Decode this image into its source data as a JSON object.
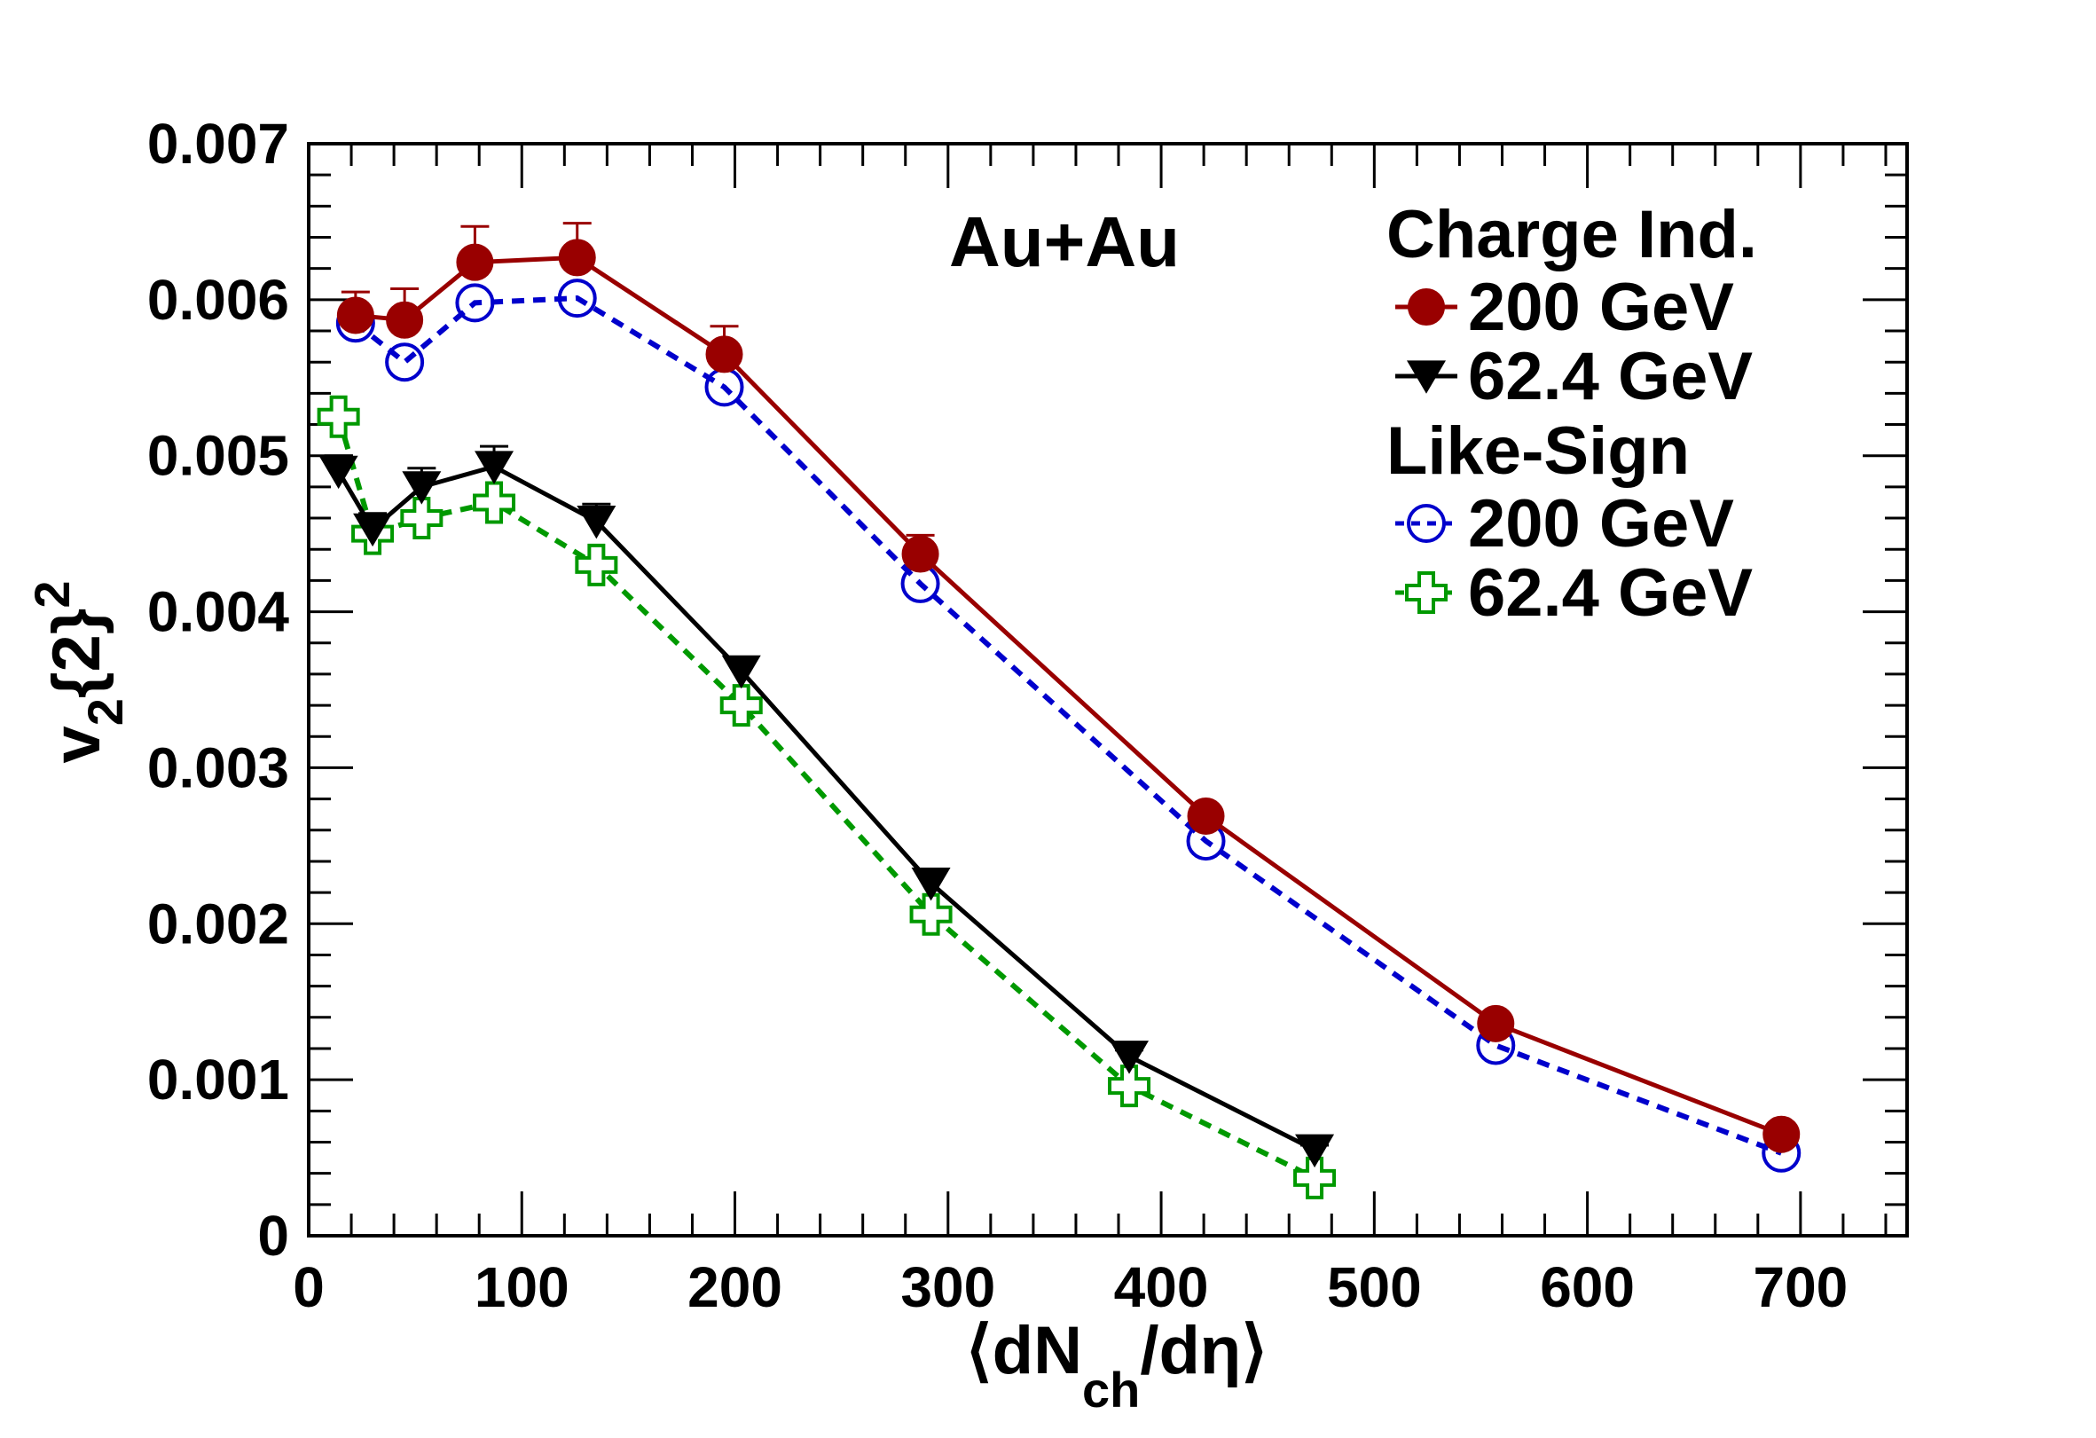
{
  "chart_data": {
    "type": "scatter",
    "title": "",
    "annotation": "Au+Au",
    "xlabel": "⟨dN_ch/dη⟩",
    "xlabel_parts": {
      "open": "⟨dN",
      "sub": "ch",
      "rest": "/dη⟩"
    },
    "ylabel": "v_2{2}^2",
    "ylabel_parts": {
      "main": "v",
      "sub": "2",
      "mid": "{2}",
      "sup": "2"
    },
    "xlim": [
      0,
      750
    ],
    "ylim": [
      0,
      0.007
    ],
    "x_ticks": [
      0,
      100,
      200,
      300,
      400,
      500,
      600,
      700
    ],
    "x_tick_labels": [
      "0",
      "100",
      "200",
      "300",
      "400",
      "500",
      "600",
      "700"
    ],
    "y_ticks": [
      0,
      0.001,
      0.002,
      0.003,
      0.004,
      0.005,
      0.006,
      0.007
    ],
    "y_tick_labels": [
      "0",
      "0.001",
      "0.002",
      "0.003",
      "0.004",
      "0.005",
      "0.006",
      "0.007"
    ],
    "grid": false,
    "legend_position": "top-right",
    "legend_groups": [
      {
        "heading": "Charge Ind.",
        "series": [
          0,
          1
        ]
      },
      {
        "heading": "Like-Sign",
        "series": [
          2,
          3
        ]
      }
    ],
    "series": [
      {
        "name": "200 GeV",
        "group": "Charge Ind.",
        "color": "#990000",
        "marker": "filled-circle",
        "line": "solid",
        "x": [
          22,
          45,
          78,
          126,
          195,
          287,
          421,
          557,
          691
        ],
        "y": [
          0.0059,
          0.00587,
          0.00624,
          0.00627,
          0.00565,
          0.00437,
          0.00269,
          0.00136,
          0.00065
        ],
        "err": [
          0.00015,
          0.0002,
          0.00023,
          0.00022,
          0.00018,
          0.00012,
          6e-05,
          4e-05,
          3e-05
        ]
      },
      {
        "name": "62.4 GeV",
        "group": "Charge Ind.",
        "color": "#000000",
        "marker": "filled-triangle-down",
        "line": "solid",
        "x": [
          14,
          30,
          53,
          87,
          135,
          203,
          292,
          385,
          472
        ],
        "y": [
          0.0049,
          0.00453,
          0.0048,
          0.00493,
          0.00458,
          0.00362,
          0.00226,
          0.00115,
          0.00055
        ],
        "err": [
          0.0001,
          0.0001,
          0.00012,
          0.00013,
          0.00011,
          8e-05,
          6e-05,
          4e-05,
          3e-05
        ]
      },
      {
        "name": "200 GeV",
        "group": "Like-Sign",
        "color": "#0000cc",
        "marker": "open-circle",
        "line": "dashed",
        "x": [
          22,
          45,
          78,
          126,
          195,
          287,
          421,
          557,
          691
        ],
        "y": [
          0.00585,
          0.0056,
          0.00598,
          0.00601,
          0.00544,
          0.00418,
          0.00253,
          0.00122,
          0.00053
        ],
        "err": [
          0.0,
          0.0,
          0.0,
          0.0,
          0.0,
          0.0,
          0.0,
          0.0,
          0.0
        ]
      },
      {
        "name": "62.4 GeV",
        "group": "Like-Sign",
        "color": "#009900",
        "marker": "open-cross",
        "line": "dashed",
        "x": [
          14,
          30,
          53,
          87,
          135,
          203,
          292,
          385,
          472
        ],
        "y": [
          0.00525,
          0.0045,
          0.0046,
          0.0047,
          0.0043,
          0.0034,
          0.00206,
          0.00096,
          0.00037
        ],
        "err": [
          0.0,
          0.0,
          0.0,
          0.0,
          0.0,
          0.0,
          0.0,
          0.0,
          0.0
        ]
      }
    ]
  }
}
